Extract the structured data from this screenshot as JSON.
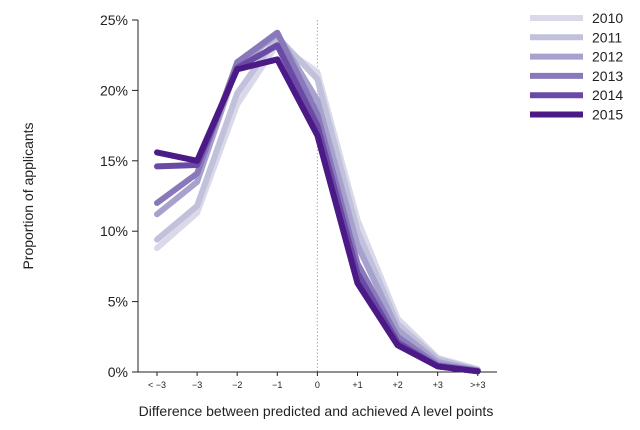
{
  "chart_data": {
    "type": "line",
    "xlabel": "Difference between predicted and achieved A level points",
    "ylabel": "Proportion of applicants",
    "categories": [
      "< −3",
      "−3",
      "−2",
      "−1",
      "0",
      "+1",
      "+2",
      "+3",
      ">+3"
    ],
    "yticks": [
      "0%",
      "5%",
      "10%",
      "15%",
      "20%",
      "25%"
    ],
    "ylim": [
      0,
      25
    ],
    "grid": false,
    "reference_line_at": "0",
    "legend_position": "top-right",
    "series": [
      {
        "name": "2010",
        "color": "#d9d9ea",
        "values": [
          8.8,
          11.3,
          19.0,
          23.3,
          21.3,
          10.8,
          3.8,
          1.0,
          0.2
        ]
      },
      {
        "name": "2011",
        "color": "#c1c1dc",
        "values": [
          9.4,
          11.8,
          19.8,
          23.8,
          20.8,
          10.0,
          3.4,
          0.9,
          0.15
        ]
      },
      {
        "name": "2012",
        "color": "#a7a2cd",
        "values": [
          11.2,
          13.5,
          21.8,
          24.0,
          19.3,
          9.0,
          3.0,
          0.7,
          0.1
        ]
      },
      {
        "name": "2013",
        "color": "#8979ba",
        "values": [
          12.0,
          14.1,
          22.0,
          24.1,
          18.3,
          7.7,
          2.5,
          0.5,
          0.1
        ]
      },
      {
        "name": "2014",
        "color": "#6a4aa5",
        "values": [
          14.6,
          14.7,
          21.6,
          23.2,
          17.5,
          7.0,
          2.1,
          0.4,
          0.05
        ]
      },
      {
        "name": "2015",
        "color": "#4b1a87",
        "values": [
          15.6,
          15.0,
          21.5,
          22.2,
          16.8,
          6.3,
          1.9,
          0.4,
          0.05
        ]
      }
    ]
  }
}
